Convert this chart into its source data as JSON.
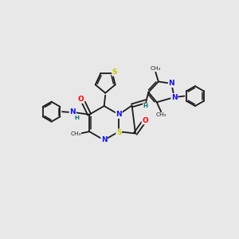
{
  "background_color": "#e8e8e8",
  "figure_size": [
    3.0,
    3.0
  ],
  "dpi": 100,
  "bond_color": "#1a1a1a",
  "bond_lw": 1.3,
  "atom_colors": {
    "N": "#1414e6",
    "S": "#c8c800",
    "O": "#ff0000",
    "H": "#007070",
    "C": "#1a1a1a"
  },
  "xlim": [
    0,
    10
  ],
  "ylim": [
    2,
    8
  ]
}
